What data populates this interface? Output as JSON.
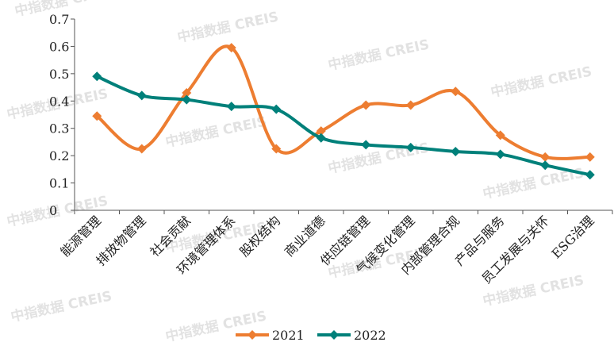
{
  "watermark": "中指数据 CREIS",
  "chart_data": {
    "type": "line",
    "categories": [
      "能源管理",
      "排放物管理",
      "社会贡献",
      "环境管理体系",
      "股权结构",
      "商业道德",
      "供应链管理",
      "气候变化管理",
      "内部管理合规",
      "产品与服务",
      "员工发展与关怀",
      "ESG治理"
    ],
    "series": [
      {
        "name": "2021",
        "color": "#ed7d31",
        "values": [
          0.345,
          0.225,
          0.43,
          0.595,
          0.225,
          0.29,
          0.385,
          0.385,
          0.435,
          0.275,
          0.195,
          0.195
        ]
      },
      {
        "name": "2022",
        "color": "#00807a",
        "values": [
          0.49,
          0.42,
          0.405,
          0.38,
          0.37,
          0.265,
          0.24,
          0.23,
          0.215,
          0.205,
          0.165,
          0.13
        ]
      }
    ],
    "yticks": [
      "0",
      "0.1",
      "0.2",
      "0.3",
      "0.4",
      "0.5",
      "0.6",
      "0.7"
    ],
    "ylim": [
      0,
      0.7
    ],
    "smooth": true,
    "legend_position": "bottom",
    "grid": false
  }
}
